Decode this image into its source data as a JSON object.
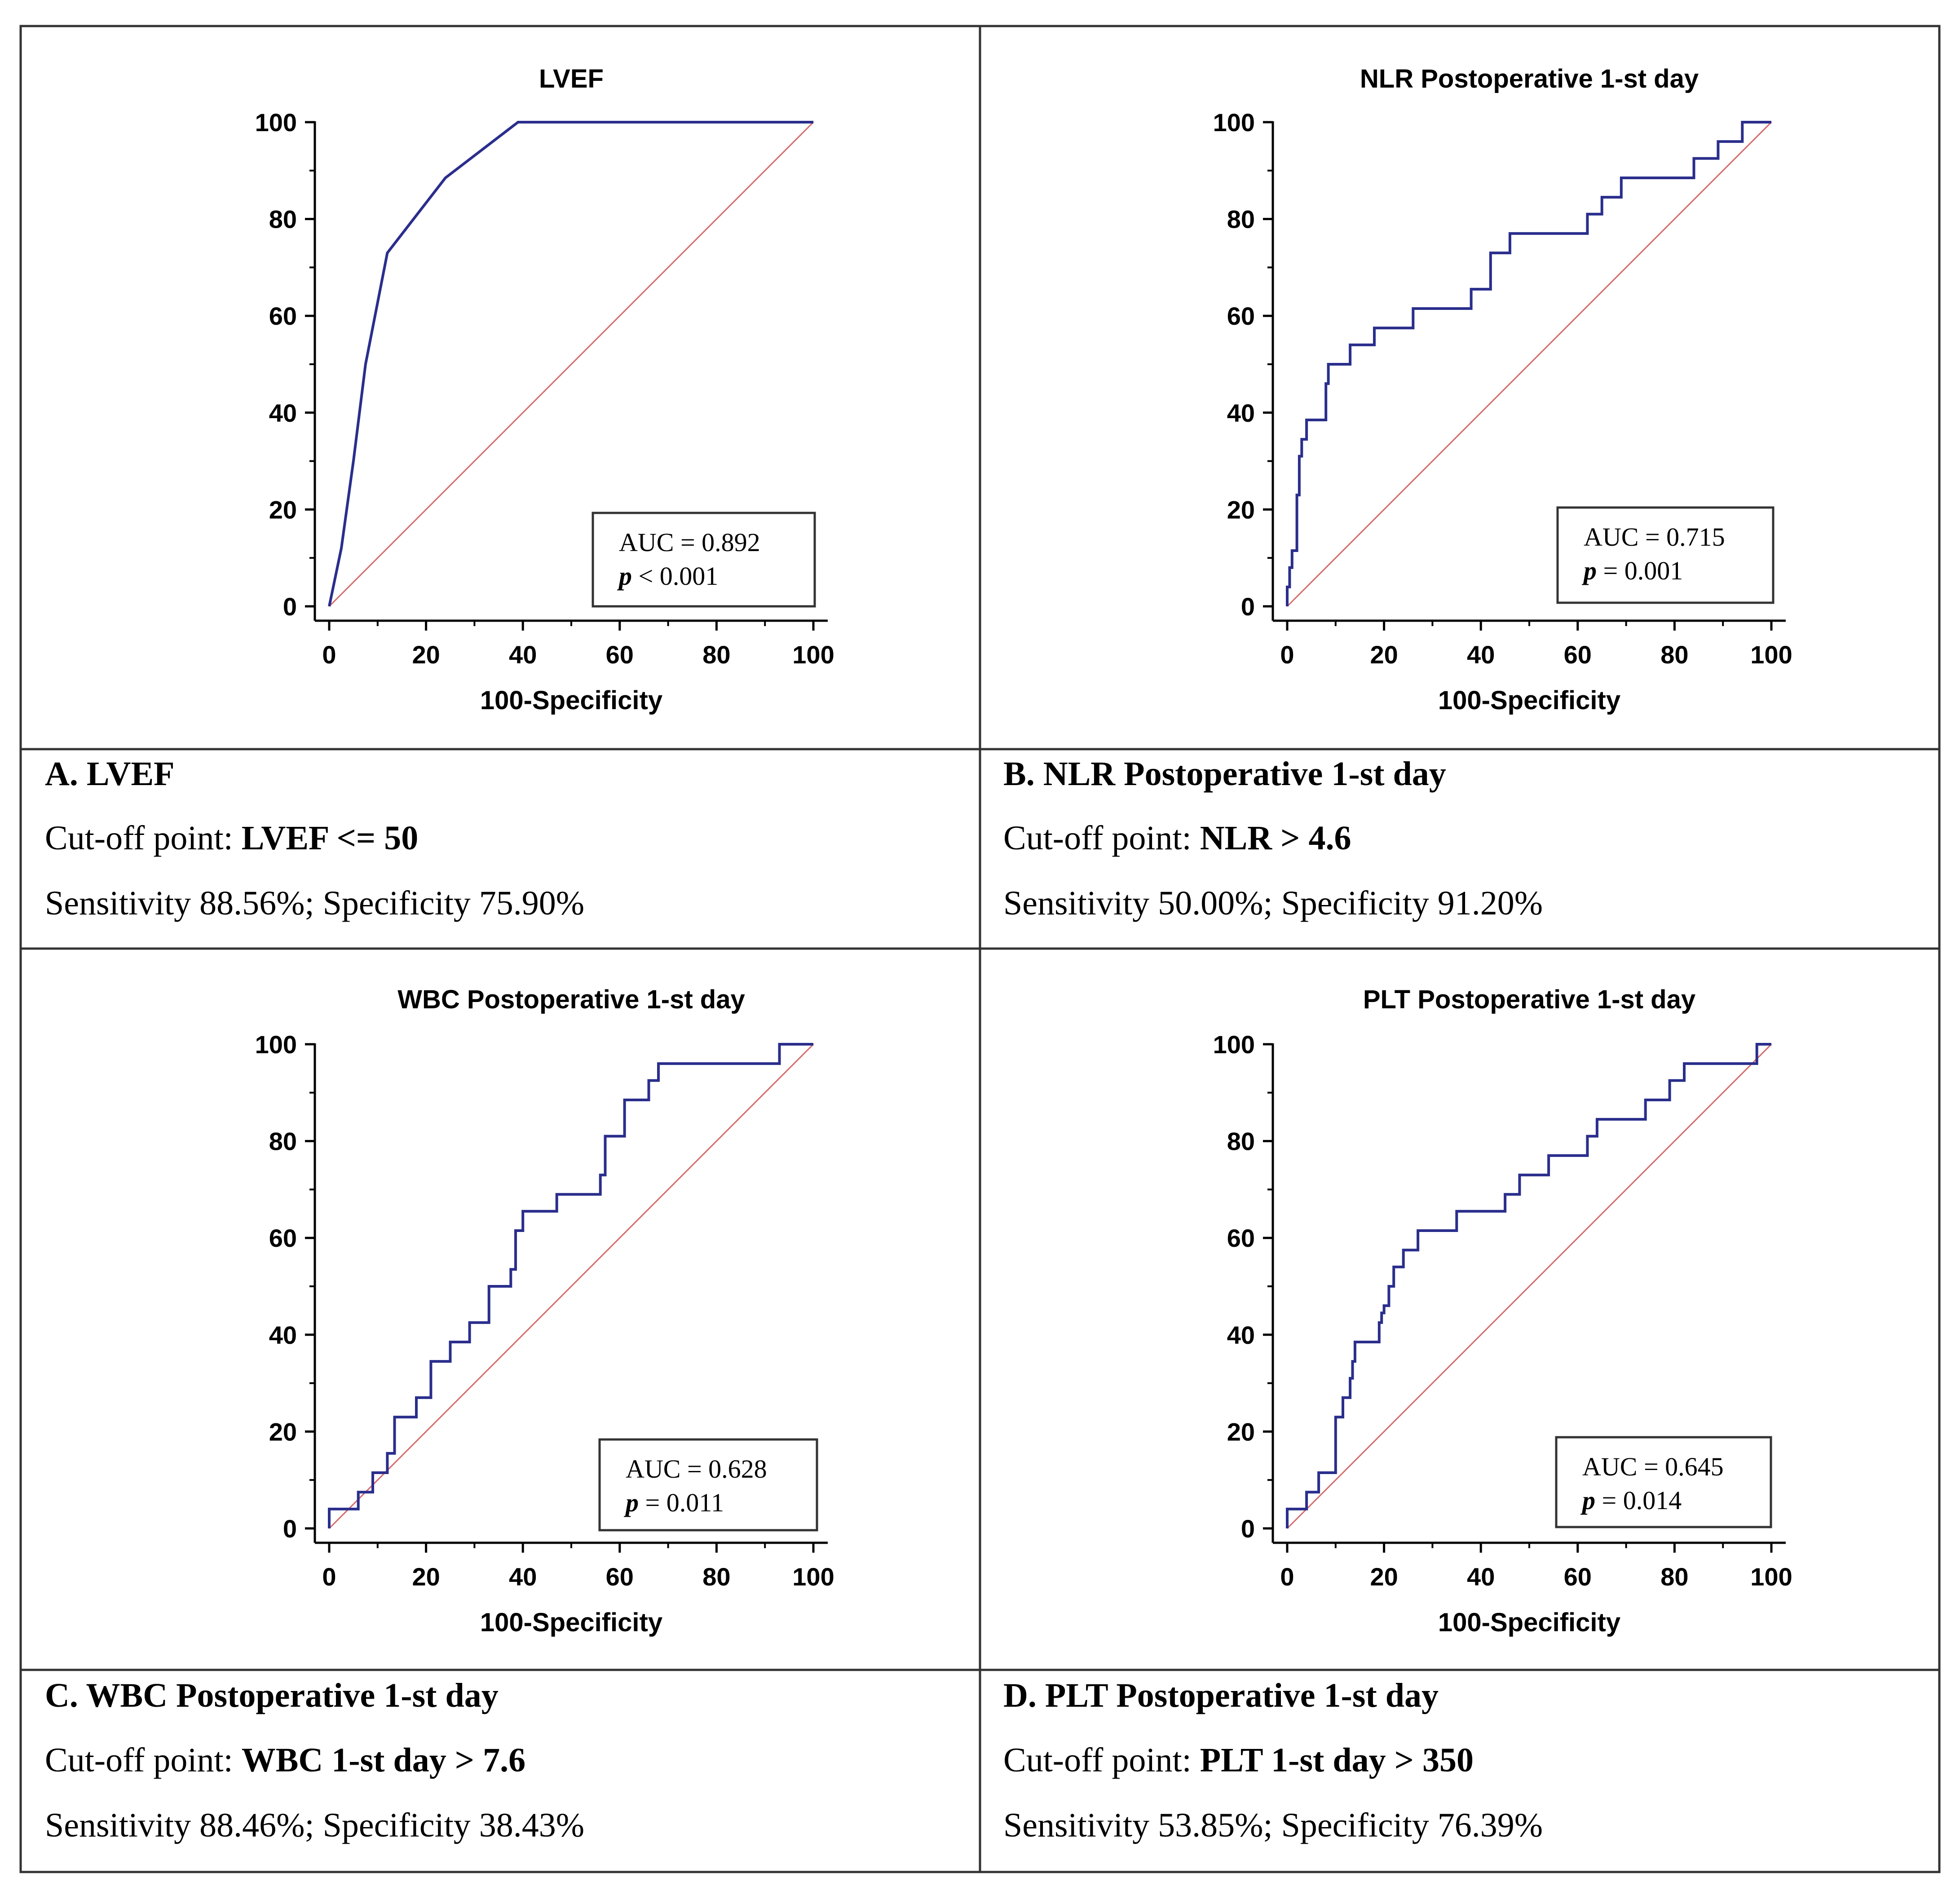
{
  "chart_data": [
    {
      "type": "line",
      "title": "LVEF",
      "xlabel": "100-Specificity",
      "ylabel": "",
      "xlim": [
        0,
        100
      ],
      "ylim": [
        0,
        100
      ],
      "xticks": [
        "0",
        "20",
        "40",
        "60",
        "80",
        "100"
      ],
      "yticks": [
        "0",
        "20",
        "40",
        "60",
        "80",
        "100"
      ],
      "series": [
        {
          "name": "ROC",
          "color": "#2a2e8c",
          "x": [
            0,
            2.5,
            5,
            7.5,
            12,
            24,
            39,
            100
          ],
          "y": [
            0,
            12,
            30,
            50,
            73,
            88.5,
            100,
            100
          ]
        },
        {
          "name": "Reference",
          "color": "#d46a6a",
          "x": [
            0,
            100
          ],
          "y": [
            0,
            100
          ]
        }
      ],
      "auc_label": "AUC = 0.892",
      "p_symbol": "p",
      "p_rest": " < 0.001"
    },
    {
      "type": "line",
      "title": "NLR Postoperative 1-st day",
      "xlabel": "100-Specificity",
      "ylabel": "",
      "xlim": [
        0,
        100
      ],
      "ylim": [
        0,
        100
      ],
      "xticks": [
        "0",
        "20",
        "40",
        "60",
        "80",
        "100"
      ],
      "yticks": [
        "0",
        "20",
        "40",
        "60",
        "80",
        "100"
      ],
      "series": [
        {
          "name": "ROC",
          "color": "#2a2e8c",
          "x": [
            0,
            0,
            0.5,
            0.5,
            1,
            1,
            2,
            2,
            2.5,
            2.5,
            3,
            3,
            4,
            4,
            8,
            8,
            8.5,
            8.5,
            13,
            13,
            18,
            18,
            26,
            26,
            38,
            38,
            42,
            42,
            46,
            46,
            62,
            62,
            65,
            65,
            69,
            69,
            84,
            84,
            89,
            89,
            94,
            94,
            100
          ],
          "y": [
            0,
            4,
            4,
            8,
            8,
            11.5,
            11.5,
            23,
            23,
            31,
            31,
            34.5,
            34.5,
            38.5,
            38.5,
            46,
            46,
            50,
            50,
            54,
            54,
            57.5,
            57.5,
            61.5,
            61.5,
            65.5,
            65.5,
            73,
            73,
            77,
            77,
            81,
            81,
            84.5,
            84.5,
            88.5,
            88.5,
            92.5,
            92.5,
            96,
            96,
            100,
            100
          ]
        },
        {
          "name": "Reference",
          "color": "#d46a6a",
          "x": [
            0,
            100
          ],
          "y": [
            0,
            100
          ]
        }
      ],
      "auc_label": "AUC = 0.715",
      "p_symbol": "p",
      "p_rest": " = 0.001"
    },
    {
      "type": "line",
      "title": "WBC Postoperative 1-st day",
      "xlabel": "100-Specificity",
      "ylabel": "",
      "xlim": [
        0,
        100
      ],
      "ylim": [
        0,
        100
      ],
      "xticks": [
        "0",
        "20",
        "40",
        "60",
        "80",
        "100"
      ],
      "yticks": [
        "0",
        "20",
        "40",
        "60",
        "80",
        "100"
      ],
      "series": [
        {
          "name": "ROC",
          "color": "#2a2e8c",
          "x": [
            0,
            0,
            6,
            6,
            9,
            9,
            12,
            12,
            13.5,
            13.5,
            18,
            18,
            21,
            21,
            25,
            25,
            29,
            29,
            33,
            33,
            37.5,
            37.5,
            38.5,
            38.5,
            40,
            40,
            47,
            47,
            56,
            56,
            57,
            57,
            61,
            61,
            66,
            66,
            68,
            68,
            93,
            93,
            100
          ],
          "y": [
            0,
            4,
            4,
            7.5,
            7.5,
            11.5,
            11.5,
            15.5,
            15.5,
            23,
            23,
            27,
            27,
            34.5,
            34.5,
            38.5,
            38.5,
            42.5,
            42.5,
            50,
            50,
            53.5,
            53.5,
            61.5,
            61.5,
            65.5,
            65.5,
            69,
            69,
            73,
            73,
            81,
            81,
            88.5,
            88.5,
            92.5,
            92.5,
            96,
            96,
            100,
            100
          ]
        },
        {
          "name": "Reference",
          "color": "#d46a6a",
          "x": [
            0,
            100
          ],
          "y": [
            0,
            100
          ]
        }
      ],
      "auc_label": "AUC = 0.628",
      "p_symbol": "p",
      "p_rest": " = 0.011"
    },
    {
      "type": "line",
      "title": "PLT Postoperative 1-st day",
      "xlabel": "100-Specificity",
      "ylabel": "",
      "xlim": [
        0,
        100
      ],
      "ylim": [
        0,
        100
      ],
      "xticks": [
        "0",
        "20",
        "40",
        "60",
        "80",
        "100"
      ],
      "yticks": [
        "0",
        "20",
        "40",
        "60",
        "80",
        "100"
      ],
      "series": [
        {
          "name": "ROC",
          "color": "#2a2e8c",
          "x": [
            0,
            0,
            4,
            4,
            6.5,
            6.5,
            10,
            10,
            11.5,
            11.5,
            13,
            13,
            13.5,
            13.5,
            14,
            14,
            19,
            19,
            19.5,
            19.5,
            20,
            20,
            21,
            21,
            22,
            22,
            24,
            24,
            27,
            27,
            35,
            35,
            45,
            45,
            48,
            48,
            54,
            54,
            62,
            62,
            64,
            64,
            74,
            74,
            79,
            79,
            82,
            82,
            97,
            97,
            100
          ],
          "y": [
            0,
            4,
            4,
            7.5,
            7.5,
            11.5,
            11.5,
            23,
            23,
            27,
            27,
            31,
            31,
            34.5,
            34.5,
            38.5,
            38.5,
            42.5,
            42.5,
            44.5,
            44.5,
            46,
            46,
            50,
            50,
            54,
            54,
            57.5,
            57.5,
            61.5,
            61.5,
            65.5,
            65.5,
            69,
            69,
            73,
            73,
            77,
            77,
            81,
            81,
            84.5,
            84.5,
            88.5,
            88.5,
            92.5,
            92.5,
            96,
            96,
            100,
            100
          ]
        },
        {
          "name": "Reference",
          "color": "#d46a6a",
          "x": [
            0,
            100
          ],
          "y": [
            0,
            100
          ]
        }
      ],
      "auc_label": "AUC = 0.645",
      "p_symbol": "p",
      "p_rest": " = 0.014"
    }
  ],
  "captions": [
    {
      "heading": "A.  LVEF",
      "cutoff_label": "Cut-off point: ",
      "cutoff_value": "LVEF <= 50",
      "stats": "Sensitivity 88.56%; Specificity 75.90%"
    },
    {
      "heading": "B.  NLR Postoperative 1-st day",
      "cutoff_label": "Cut-off point: ",
      "cutoff_value": "NLR > 4.6",
      "stats": "Sensitivity 50.00%; Specificity 91.20%"
    },
    {
      "heading": "C.  WBC  Postoperative 1-st day",
      "cutoff_label": "Cut-off point: ",
      "cutoff_value": "WBC 1-st day > 7.6",
      "stats": "Sensitivity 88.46%; Specificity 38.43%"
    },
    {
      "heading": "D.  PLT  Postoperative 1-st day",
      "cutoff_label": "Cut-off point: ",
      "cutoff_value": "PLT 1-st day > 350",
      "stats": "Sensitivity 53.85%; Specificity 76.39%"
    }
  ]
}
